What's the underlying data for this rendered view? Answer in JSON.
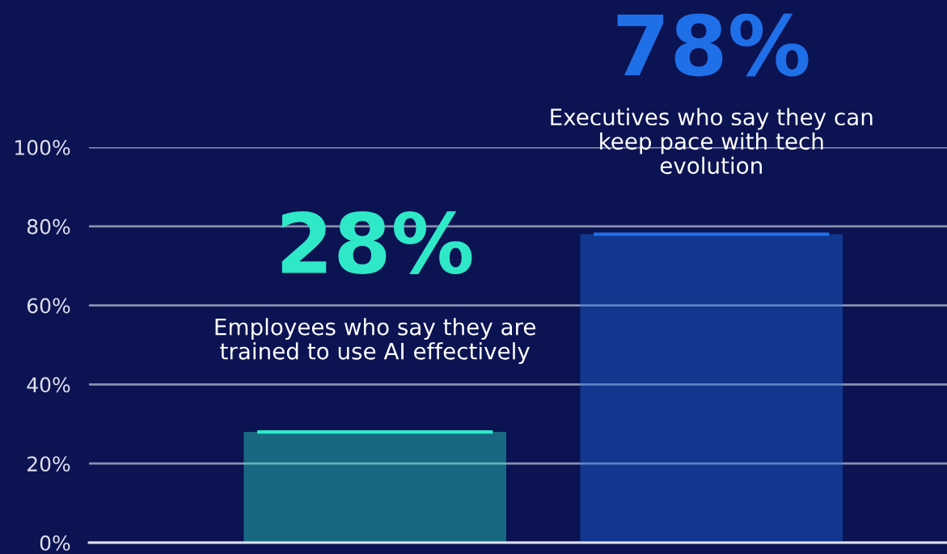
{
  "chart_data": {
    "type": "bar",
    "categories": [
      "Employees who say they are trained to use AI effectively",
      "Executives who say they can keep pace with tech evolution"
    ],
    "values": [
      28,
      78
    ],
    "value_labels": [
      "28%",
      "78%"
    ],
    "colors": [
      "#2ee8c8",
      "#1f6fe8"
    ],
    "ylim": [
      0,
      100
    ],
    "yticks": [
      {
        "value": 0,
        "label": "0%"
      },
      {
        "value": 20,
        "label": "20%"
      },
      {
        "value": 40,
        "label": "40%"
      },
      {
        "value": 60,
        "label": "60%"
      },
      {
        "value": 80,
        "label": "80%"
      },
      {
        "value": 100,
        "label": "100%"
      }
    ],
    "grid": "y"
  }
}
